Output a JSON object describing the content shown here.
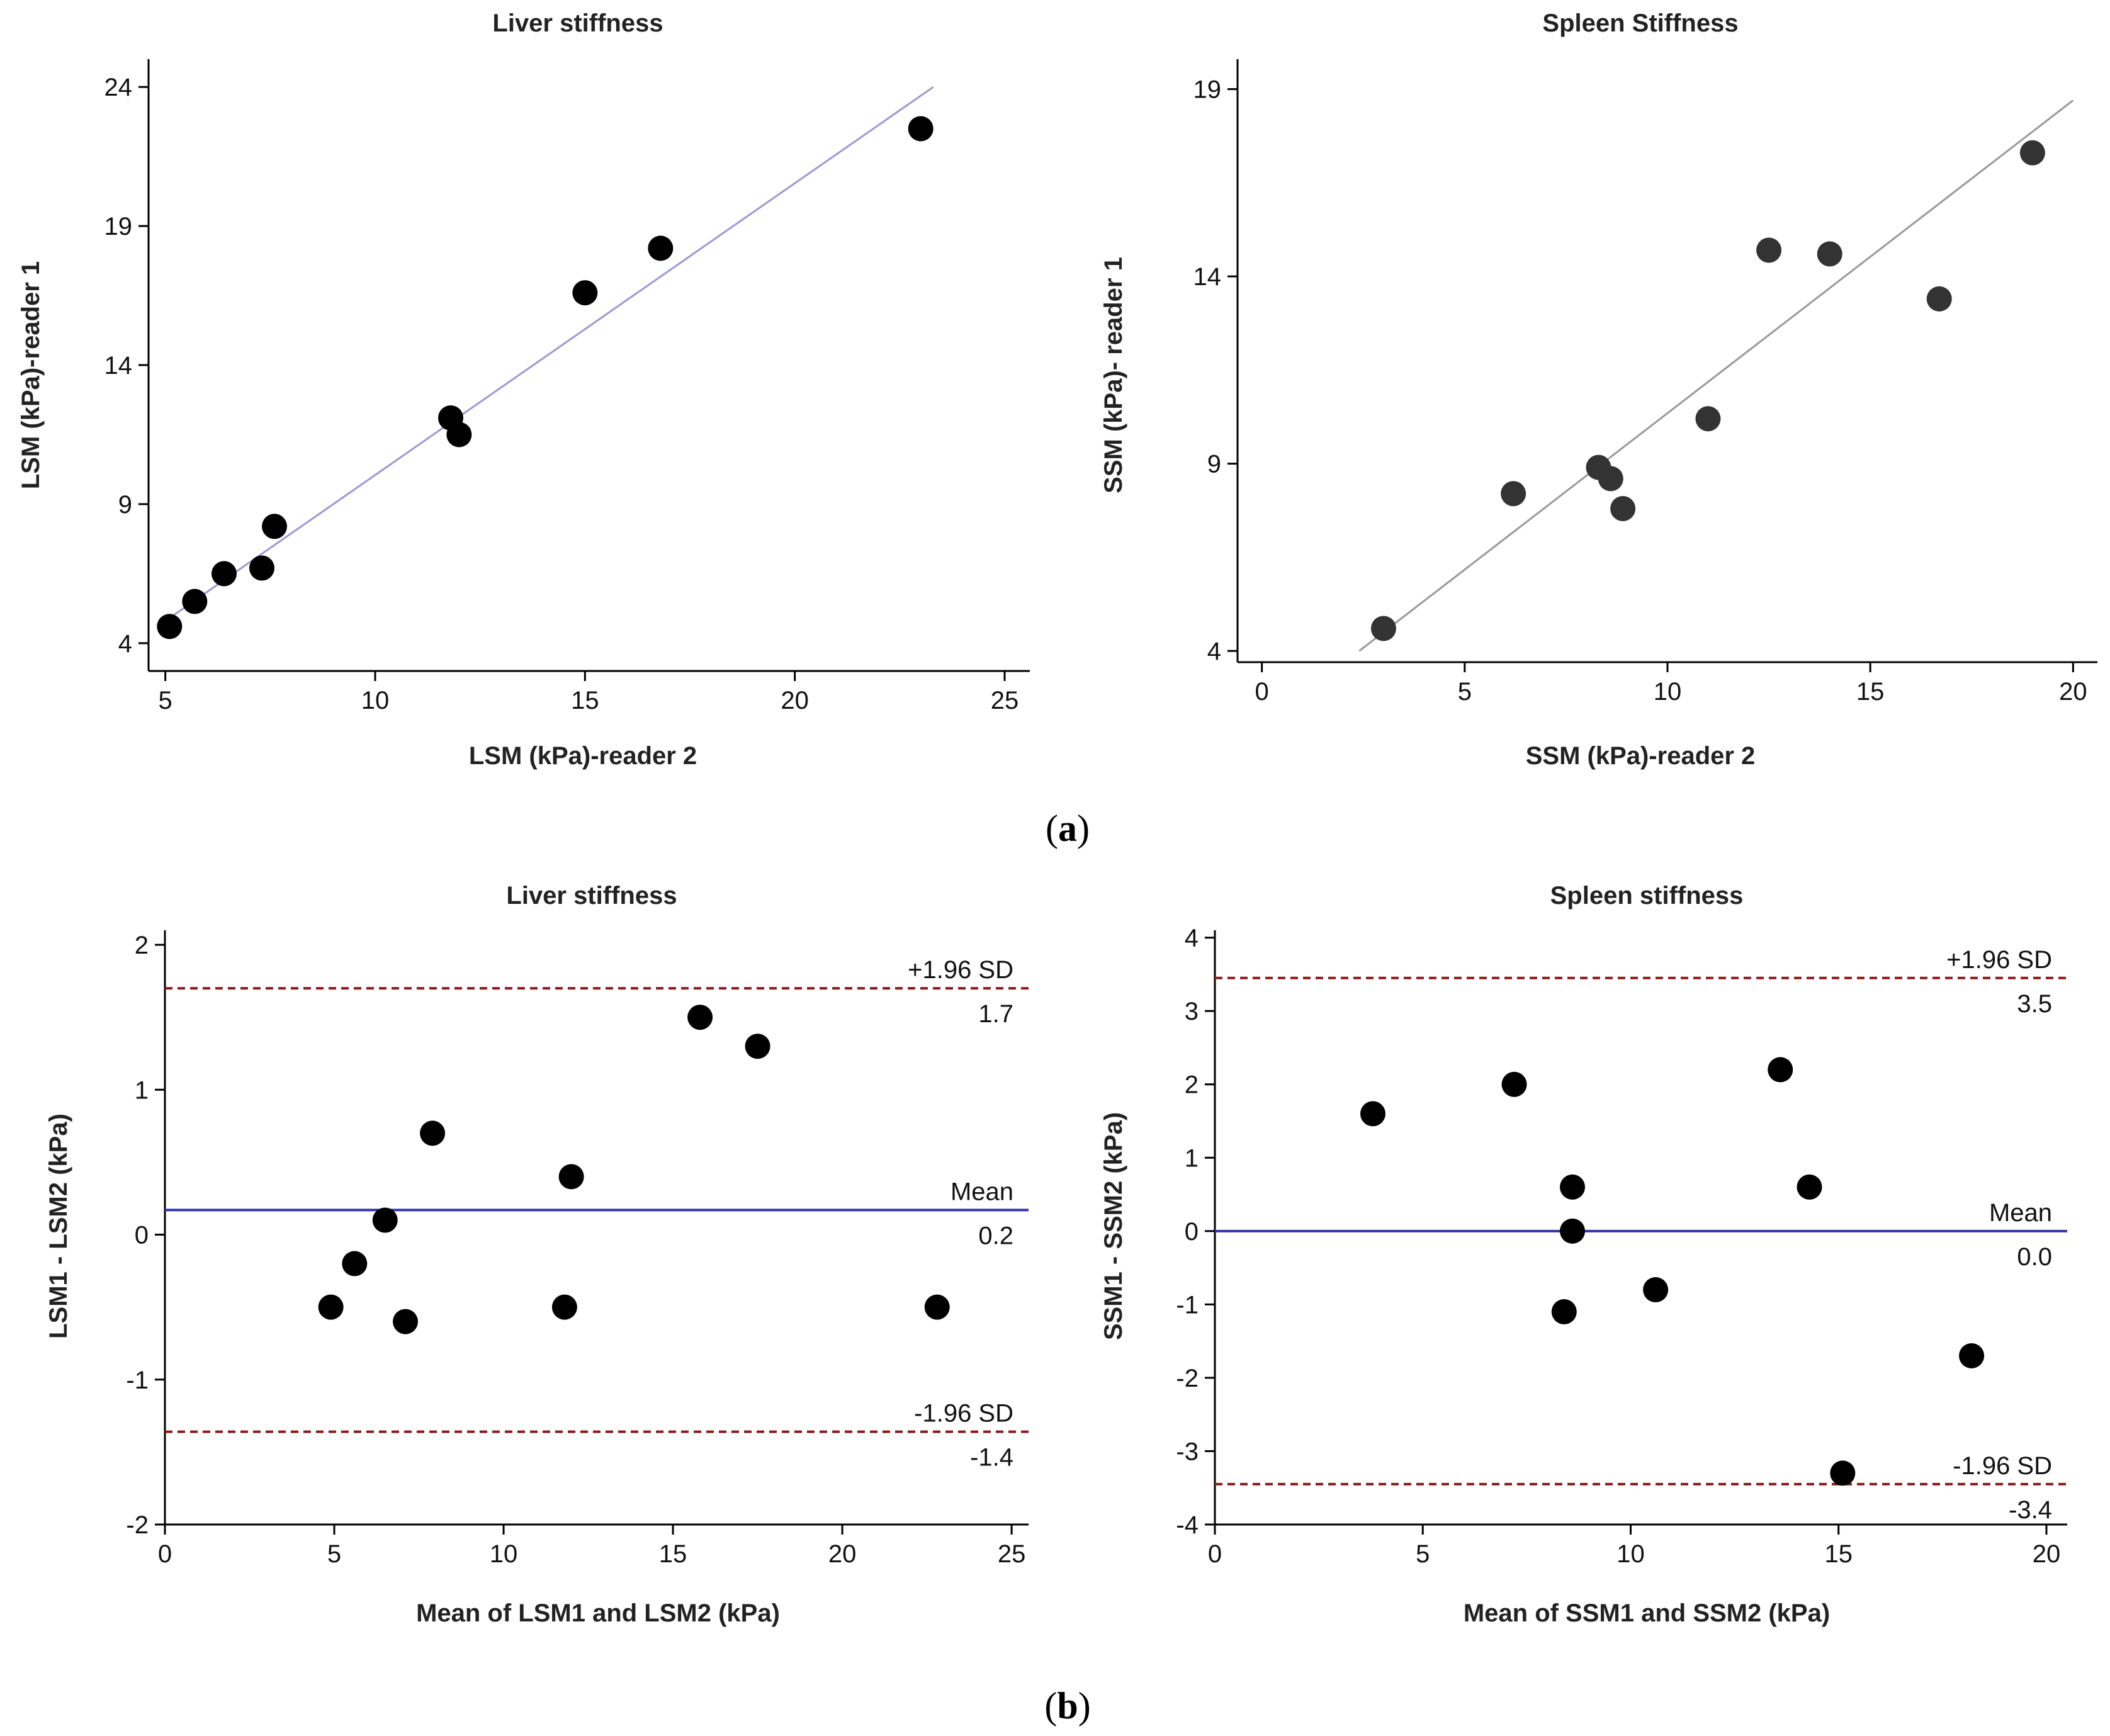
{
  "panel_labels": [
    {
      "open": "(",
      "letter": "a",
      "close": ")"
    },
    {
      "open": "(",
      "letter": "b",
      "close": ")"
    }
  ],
  "colors": {
    "points": "#000000",
    "points_spleen_scatter": "#333333",
    "fit_liver": "#9a9ad6",
    "fit_spleen": "#999999",
    "mean_line": "#3333aa",
    "limit_line": "#8b1a1a",
    "axis": "#000000"
  },
  "chart_data": [
    {
      "type": "scatter",
      "title": "Liver stiffness",
      "xlabel": "LSM (kPa)-reader 2",
      "ylabel": "LSM (kPa)-reader 1",
      "xlim": [
        4.6,
        25.6
      ],
      "ylim": [
        3.0,
        25.0
      ],
      "xticks": [
        5,
        10,
        15,
        20,
        25
      ],
      "yticks": [
        4,
        9,
        14,
        19,
        24
      ],
      "points": [
        {
          "x": 5.1,
          "y": 4.6
        },
        {
          "x": 5.7,
          "y": 5.5
        },
        {
          "x": 6.4,
          "y": 6.5
        },
        {
          "x": 7.3,
          "y": 6.7
        },
        {
          "x": 7.6,
          "y": 8.2
        },
        {
          "x": 11.8,
          "y": 12.1
        },
        {
          "x": 12.0,
          "y": 11.5
        },
        {
          "x": 15.0,
          "y": 16.6
        },
        {
          "x": 16.8,
          "y": 18.2
        },
        {
          "x": 23.0,
          "y": 22.5
        }
      ],
      "fit_line": [
        {
          "x": 5.0,
          "y": 4.8
        },
        {
          "x": 23.3,
          "y": 24.0
        }
      ]
    },
    {
      "type": "scatter",
      "title": "Spleen Stiffness",
      "xlabel": "SSM (kPa)-reader 2",
      "ylabel": "SSM (kPa)- reader 1",
      "xlim": [
        -0.6,
        20.6
      ],
      "ylim": [
        3.7,
        19.8
      ],
      "xticks": [
        0,
        5,
        10,
        15,
        20
      ],
      "yticks": [
        4,
        9,
        14,
        19
      ],
      "points": [
        {
          "x": 3.0,
          "y": 4.6
        },
        {
          "x": 6.2,
          "y": 8.2
        },
        {
          "x": 8.3,
          "y": 8.9
        },
        {
          "x": 8.6,
          "y": 8.6
        },
        {
          "x": 8.9,
          "y": 7.8
        },
        {
          "x": 11.0,
          "y": 10.2
        },
        {
          "x": 12.5,
          "y": 14.7
        },
        {
          "x": 14.0,
          "y": 14.6
        },
        {
          "x": 16.7,
          "y": 13.4
        },
        {
          "x": 19.0,
          "y": 17.3
        }
      ],
      "fit_line": [
        {
          "x": 2.4,
          "y": 4.0
        },
        {
          "x": 20.0,
          "y": 18.7
        }
      ]
    },
    {
      "type": "scatter",
      "title": "Liver stiffness",
      "xlabel": "Mean of LSM1 and LSM2 (kPa)",
      "ylabel": "LSM1 - LSM2 (kPa)",
      "xlim": [
        0,
        25.5
      ],
      "ylim": [
        -2.0,
        2.1
      ],
      "xticks": [
        0,
        5,
        10,
        15,
        20,
        25
      ],
      "yticks": [
        -2,
        -1,
        0,
        1,
        2
      ],
      "points": [
        {
          "x": 4.9,
          "y": -0.5
        },
        {
          "x": 5.6,
          "y": -0.2
        },
        {
          "x": 6.5,
          "y": 0.1
        },
        {
          "x": 7.1,
          "y": -0.6
        },
        {
          "x": 7.9,
          "y": 0.7
        },
        {
          "x": 11.8,
          "y": -0.5
        },
        {
          "x": 12.0,
          "y": 0.4
        },
        {
          "x": 15.8,
          "y": 1.5
        },
        {
          "x": 17.5,
          "y": 1.3
        },
        {
          "x": 22.8,
          "y": -0.5
        }
      ],
      "mean": 0.17,
      "upper_limit": 1.7,
      "lower_limit": -1.36,
      "annotations": {
        "upper_label": "+1.96 SD",
        "upper_value": "1.7",
        "mean_label": "Mean",
        "mean_value": "0.2",
        "lower_label": "-1.96 SD",
        "lower_value": "-1.4"
      }
    },
    {
      "type": "scatter",
      "title": "Spleen stiffness",
      "xlabel": "Mean of SSM1 and SSM2 (kPa)",
      "ylabel": "SSM1 - SSM2 (kPa)",
      "xlim": [
        0,
        20.5
      ],
      "ylim": [
        -4.0,
        4.1
      ],
      "xticks": [
        0,
        5,
        10,
        15,
        20
      ],
      "yticks": [
        -4,
        -3,
        -2,
        -1,
        0,
        1,
        2,
        3,
        4
      ],
      "points": [
        {
          "x": 3.8,
          "y": 1.6
        },
        {
          "x": 7.2,
          "y": 2.0
        },
        {
          "x": 8.4,
          "y": -1.1
        },
        {
          "x": 8.6,
          "y": 0.6
        },
        {
          "x": 8.6,
          "y": 0.0
        },
        {
          "x": 10.6,
          "y": -0.8
        },
        {
          "x": 13.6,
          "y": 2.2
        },
        {
          "x": 14.3,
          "y": 0.6
        },
        {
          "x": 15.1,
          "y": -3.3
        },
        {
          "x": 18.2,
          "y": -1.7
        }
      ],
      "mean": 0.0,
      "upper_limit": 3.45,
      "lower_limit": -3.45,
      "annotations": {
        "upper_label": "+1.96 SD",
        "upper_value": "3.5",
        "mean_label": "Mean",
        "mean_value": "0.0",
        "lower_label": "-1.96 SD",
        "lower_value": "-3.4"
      }
    }
  ]
}
